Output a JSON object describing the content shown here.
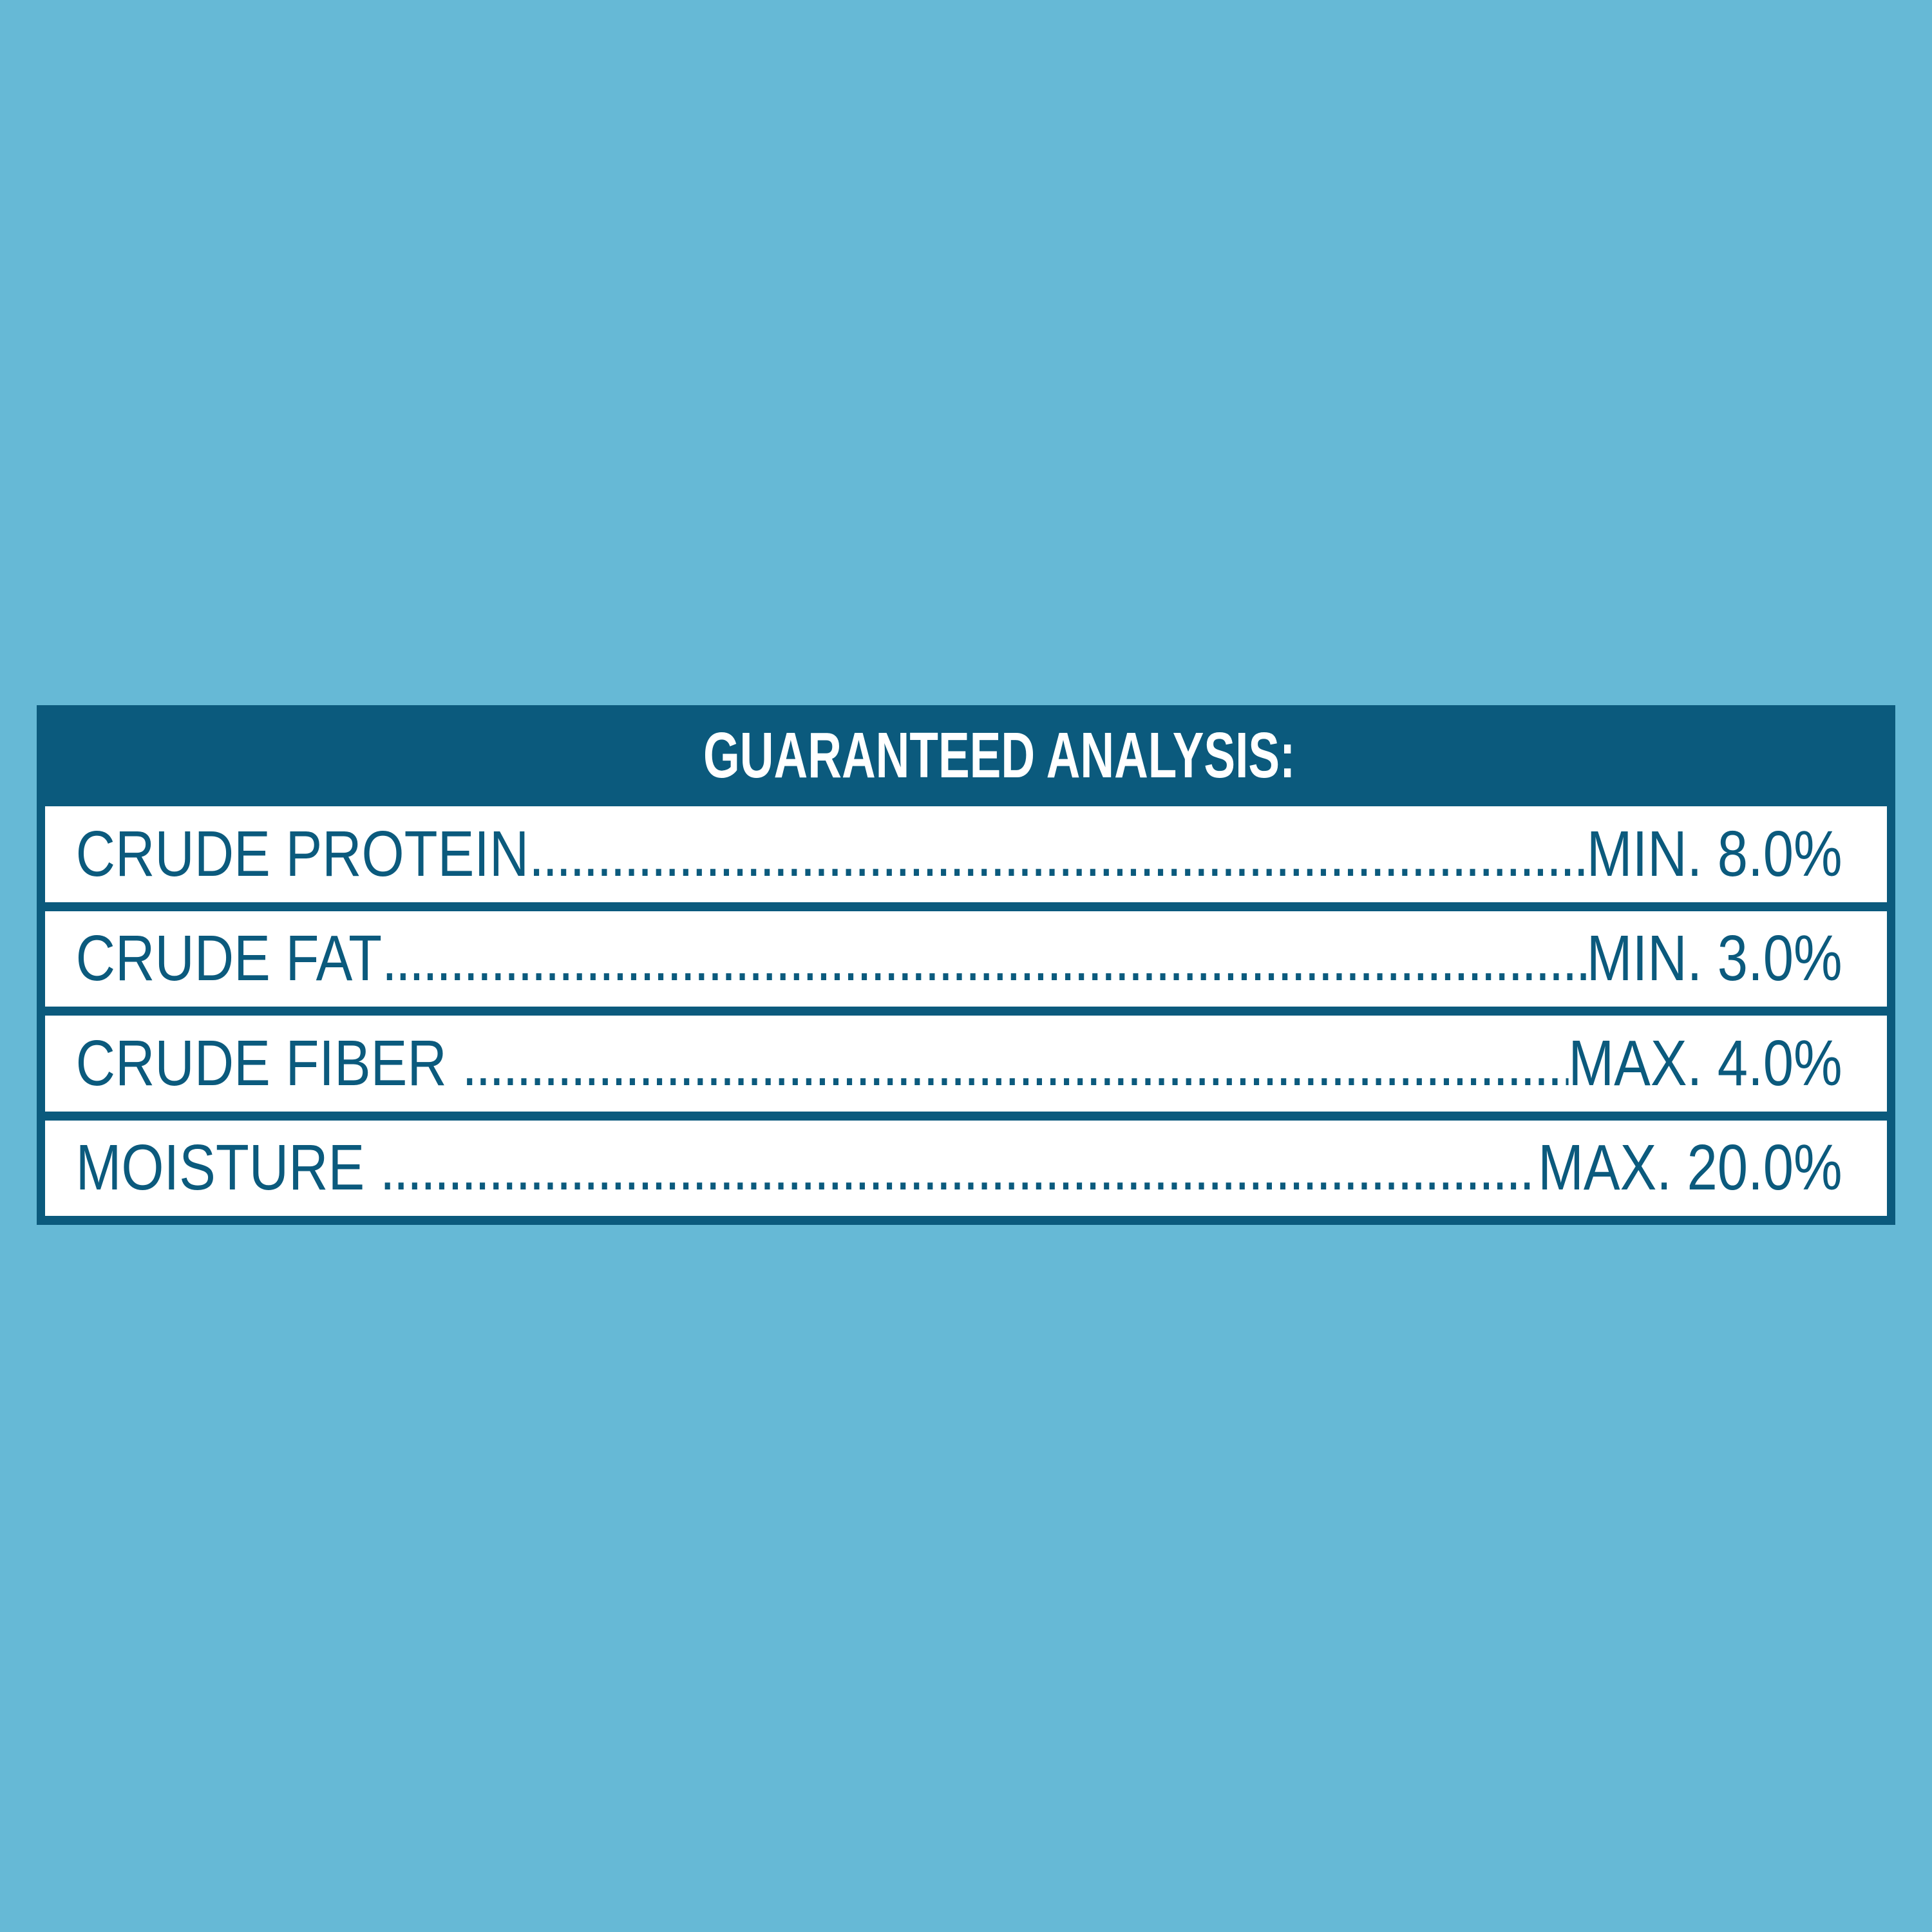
{
  "colors": {
    "background": "#66B9D6",
    "accent": "#0B5A7D",
    "row_background": "#FFFFFF",
    "header_text": "#FFFFFF"
  },
  "panel": {
    "title": "GUARANTEED ANALYSIS:",
    "leader_char": ".",
    "rows": [
      {
        "label": "CRUDE PROTEIN",
        "value": "MIN. 8.0%"
      },
      {
        "label": "CRUDE FAT",
        "value": "MIN. 3.0%"
      },
      {
        "label": "CRUDE FIBER ",
        "value": "MAX. 4.0%"
      },
      {
        "label": "MOISTURE ",
        "value": "MAX. 20.0%"
      }
    ]
  }
}
